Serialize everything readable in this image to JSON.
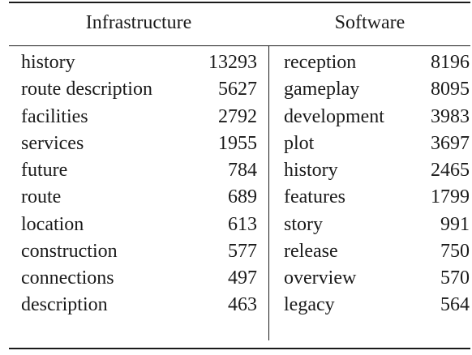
{
  "table": {
    "headers": {
      "left": "Infrastructure",
      "right": "Software"
    },
    "rows": [
      {
        "left_term": "history",
        "left_count": "13293",
        "right_term": "reception",
        "right_count": "8196"
      },
      {
        "left_term": "route description",
        "left_count": "5627",
        "right_term": "gameplay",
        "right_count": "8095"
      },
      {
        "left_term": "facilities",
        "left_count": "2792",
        "right_term": "development",
        "right_count": "3983"
      },
      {
        "left_term": "services",
        "left_count": "1955",
        "right_term": "plot",
        "right_count": "3697"
      },
      {
        "left_term": "future",
        "left_count": "784",
        "right_term": "history",
        "right_count": "2465"
      },
      {
        "left_term": "route",
        "left_count": "689",
        "right_term": "features",
        "right_count": "1799"
      },
      {
        "left_term": "location",
        "left_count": "613",
        "right_term": "story",
        "right_count": "991"
      },
      {
        "left_term": "construction",
        "left_count": "577",
        "right_term": "release",
        "right_count": "750"
      },
      {
        "left_term": "connections",
        "left_count": "497",
        "right_term": "overview",
        "right_count": "570"
      },
      {
        "left_term": "description",
        "left_count": "463",
        "right_term": "legacy",
        "right_count": "564"
      }
    ]
  }
}
